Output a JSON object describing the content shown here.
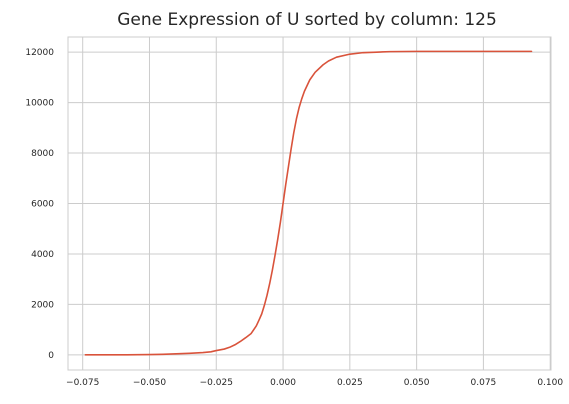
{
  "chart_data": {
    "type": "line",
    "title": "Gene Expression of U sorted by column: 125",
    "xlabel": "",
    "ylabel": "",
    "xlim": [
      -0.0805,
      0.1003
    ],
    "ylim": [
      -600,
      12600
    ],
    "grid": true,
    "x_ticks": [
      -0.075,
      -0.05,
      -0.025,
      0.0,
      0.025,
      0.05,
      0.075,
      0.1
    ],
    "x_tick_labels": [
      "−0.075",
      "−0.050",
      "−0.025",
      "0.000",
      "0.025",
      "0.050",
      "0.075",
      "0.100"
    ],
    "y_ticks": [
      0,
      2000,
      4000,
      6000,
      8000,
      10000,
      12000
    ],
    "y_tick_labels": [
      "0",
      "2000",
      "4000",
      "6000",
      "8000",
      "10000",
      "12000"
    ],
    "series": [
      {
        "color": "#d9533b",
        "x": [
          -0.074,
          -0.06,
          -0.05,
          -0.045,
          -0.04,
          -0.035,
          -0.03,
          -0.027,
          -0.025,
          -0.022,
          -0.02,
          -0.018,
          -0.016,
          -0.014,
          -0.012,
          -0.01,
          -0.009,
          -0.008,
          -0.007,
          -0.006,
          -0.005,
          -0.004,
          -0.003,
          -0.002,
          -0.001,
          0.0,
          0.001,
          0.002,
          0.003,
          0.004,
          0.005,
          0.006,
          0.007,
          0.008,
          0.01,
          0.012,
          0.015,
          0.017,
          0.02,
          0.025,
          0.03,
          0.035,
          0.04,
          0.05,
          0.06,
          0.07,
          0.08,
          0.093
        ],
        "y": [
          0,
          2,
          10,
          20,
          40,
          60,
          90,
          120,
          170,
          230,
          300,
          400,
          530,
          680,
          840,
          1150,
          1380,
          1620,
          1960,
          2360,
          2830,
          3360,
          3950,
          4580,
          5250,
          6000,
          6750,
          7450,
          8150,
          8800,
          9350,
          9800,
          10150,
          10450,
          10900,
          11200,
          11500,
          11650,
          11800,
          11920,
          11980,
          12000,
          12020,
          12030,
          12030,
          12030,
          12030,
          12030
        ]
      }
    ]
  }
}
